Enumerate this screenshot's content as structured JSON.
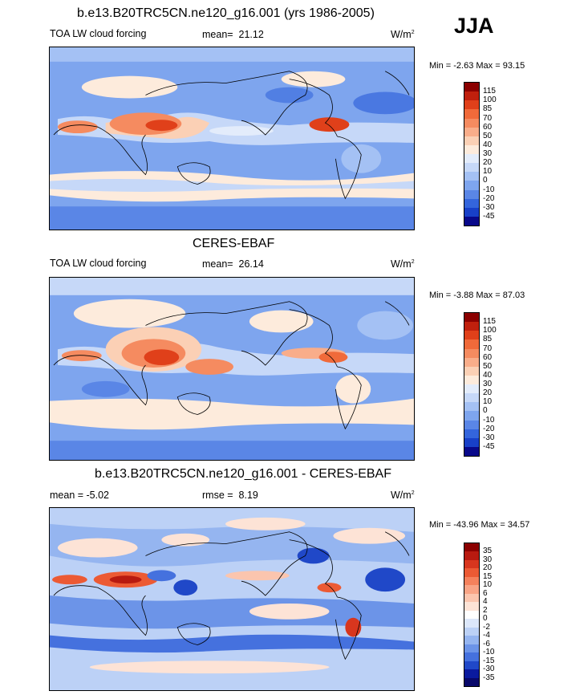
{
  "season": "JJA",
  "panels": [
    {
      "title": "b.e13.B20TRC5CN.ne120_g16.001 (yrs 1986-2005)",
      "left_label": "TOA LW cloud forcing",
      "center_label_name": "mean=",
      "center_label_value": "21.12",
      "units": "W/m",
      "units_sup": "2",
      "minmax": "Min =  -2.63 Max =  93.15",
      "colorbar": {
        "labels": [
          "115",
          "100",
          "85",
          "70",
          "60",
          "50",
          "40",
          "30",
          "20",
          "10",
          "0",
          "-10",
          "-20",
          "-30",
          "-45"
        ],
        "colors": [
          "#8b0000",
          "#c0200d",
          "#e0401a",
          "#f06a3a",
          "#f58b60",
          "#f9ad8a",
          "#fbd0b5",
          "#fdebdc",
          "#e3ecfb",
          "#c6d8f8",
          "#a4c1f4",
          "#7ea5ee",
          "#5a86e6",
          "#3465dc",
          "#1840c8",
          "#08088a"
        ]
      }
    },
    {
      "title": "CERES-EBAF",
      "left_label": "TOA LW cloud forcing",
      "center_label_name": "mean=",
      "center_label_value": "26.14",
      "units": "W/m",
      "units_sup": "2",
      "minmax": "Min =  -3.88 Max =  87.03",
      "colorbar": {
        "labels": [
          "115",
          "100",
          "85",
          "70",
          "60",
          "50",
          "40",
          "30",
          "20",
          "10",
          "0",
          "-10",
          "-20",
          "-30",
          "-45"
        ],
        "colors": [
          "#8b0000",
          "#c0200d",
          "#e0401a",
          "#f06a3a",
          "#f58b60",
          "#f9ad8a",
          "#fbd0b5",
          "#fdebdc",
          "#e3ecfb",
          "#c6d8f8",
          "#a4c1f4",
          "#7ea5ee",
          "#5a86e6",
          "#3465dc",
          "#1840c8",
          "#08088a"
        ]
      }
    },
    {
      "title": "b.e13.B20TRC5CN.ne120_g16.001 - CERES-EBAF",
      "left_label": "mean =  -5.02",
      "center_label_name": "rmse =",
      "center_label_value": "8.19",
      "units": "W/m",
      "units_sup": "2",
      "minmax": "Min = -43.96 Max =  34.57",
      "colorbar": {
        "labels": [
          "35",
          "30",
          "20",
          "15",
          "10",
          "6",
          "4",
          "2",
          "0",
          "-2",
          "-4",
          "-6",
          "-10",
          "-15",
          "-30",
          "-35"
        ],
        "colors": [
          "#8b0000",
          "#b81a10",
          "#d8361e",
          "#ec5a34",
          "#f5815c",
          "#f9a486",
          "#fbc5ae",
          "#fde3d6",
          "#ffffff",
          "#dce7fa",
          "#bcd1f6",
          "#95b5f0",
          "#6c94e8",
          "#4571de",
          "#2048c8",
          "#0a1a9e",
          "#08086a"
        ]
      }
    }
  ]
}
